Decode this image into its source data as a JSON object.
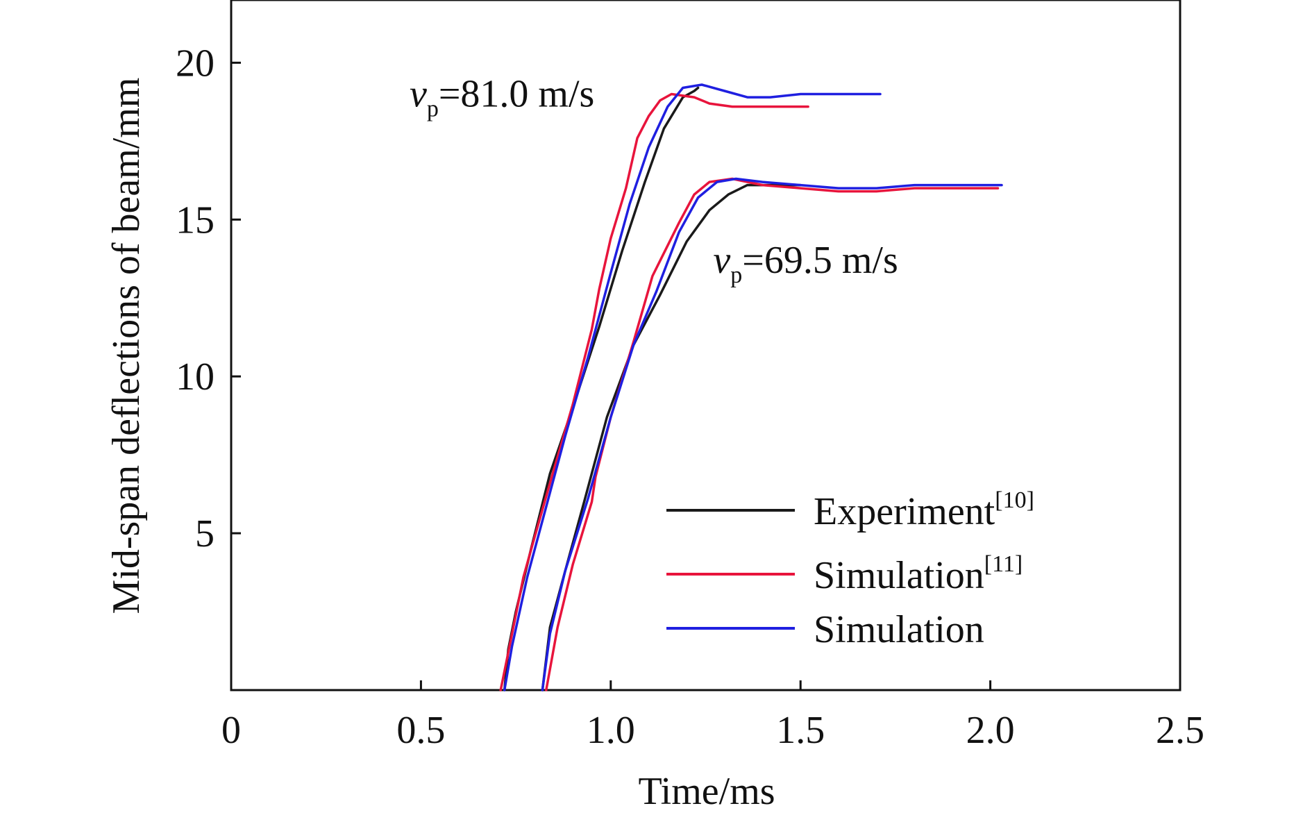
{
  "chart_data": {
    "type": "line",
    "xlabel": "Time/ms",
    "ylabel": "Mid-span deflections of beam/mm",
    "xlim": [
      0,
      2.5
    ],
    "ylim": [
      0,
      22
    ],
    "xticks": [
      {
        "value": 0,
        "label": "0"
      },
      {
        "value": 0.5,
        "label": "0.5"
      },
      {
        "value": 1.0,
        "label": "1.0"
      },
      {
        "value": 1.5,
        "label": "1.5"
      },
      {
        "value": 2.0,
        "label": "2.0"
      },
      {
        "value": 2.5,
        "label": "2.5"
      }
    ],
    "yticks": [
      {
        "value": 5,
        "label": "5"
      },
      {
        "value": 10,
        "label": "10"
      },
      {
        "value": 15,
        "label": "15"
      },
      {
        "value": 20,
        "label": "20"
      }
    ],
    "grid": false,
    "legend_position": "bottom-right",
    "legend": [
      {
        "name": "Experiment",
        "ref": "[10]",
        "color": "#1a1a1a"
      },
      {
        "name": "Simulation",
        "ref": "[11]",
        "color": "#e8143c"
      },
      {
        "name": "Simulation",
        "ref": "",
        "color": "#1f1fe0"
      }
    ],
    "annotations": [
      {
        "main": "v",
        "sub": "p",
        "rest": "=81.0 m/s",
        "x": 0.47,
        "y": 18.6
      },
      {
        "main": "v",
        "sub": "p",
        "rest": "=69.5 m/s",
        "x": 1.27,
        "y": 13.3
      }
    ],
    "groups": [
      {
        "velocity": "81.0 m/s",
        "series": [
          {
            "legend_index": 0,
            "color": "#1a1a1a",
            "points": [
              [
                0.72,
                0.0
              ],
              [
                0.73,
                1.3
              ],
              [
                0.75,
                2.5
              ],
              [
                0.79,
                4.5
              ],
              [
                0.84,
                6.9
              ],
              [
                0.9,
                9.0
              ],
              [
                0.97,
                11.6
              ],
              [
                1.03,
                14.0
              ],
              [
                1.09,
                16.2
              ],
              [
                1.14,
                17.9
              ],
              [
                1.19,
                18.9
              ],
              [
                1.22,
                19.1
              ],
              [
                1.23,
                19.2
              ]
            ]
          },
          {
            "legend_index": 1,
            "color": "#e8143c",
            "points": [
              [
                0.71,
                0.0
              ],
              [
                0.73,
                1.2
              ],
              [
                0.77,
                3.6
              ],
              [
                0.8,
                4.9
              ],
              [
                0.84,
                6.6
              ],
              [
                0.9,
                9.1
              ],
              [
                0.95,
                11.5
              ],
              [
                0.97,
                12.8
              ],
              [
                1.0,
                14.4
              ],
              [
                1.04,
                16.0
              ],
              [
                1.07,
                17.6
              ],
              [
                1.1,
                18.3
              ],
              [
                1.13,
                18.8
              ],
              [
                1.16,
                19.0
              ],
              [
                1.22,
                18.9
              ],
              [
                1.26,
                18.7
              ],
              [
                1.32,
                18.6
              ],
              [
                1.4,
                18.6
              ],
              [
                1.46,
                18.6
              ],
              [
                1.52,
                18.6
              ]
            ]
          },
          {
            "legend_index": 2,
            "color": "#1f1fe0",
            "points": [
              [
                0.72,
                0.0
              ],
              [
                0.74,
                1.4
              ],
              [
                0.78,
                3.6
              ],
              [
                0.82,
                5.4
              ],
              [
                0.88,
                8.1
              ],
              [
                0.94,
                10.6
              ],
              [
                1.0,
                13.3
              ],
              [
                1.05,
                15.5
              ],
              [
                1.1,
                17.3
              ],
              [
                1.15,
                18.6
              ],
              [
                1.19,
                19.2
              ],
              [
                1.24,
                19.3
              ],
              [
                1.3,
                19.1
              ],
              [
                1.36,
                18.9
              ],
              [
                1.42,
                18.9
              ],
              [
                1.5,
                19.0
              ],
              [
                1.6,
                19.0
              ],
              [
                1.71,
                19.0
              ]
            ]
          }
        ]
      },
      {
        "velocity": "69.5 m/s",
        "series": [
          {
            "legend_index": 0,
            "color": "#1a1a1a",
            "points": [
              [
                0.82,
                0.0
              ],
              [
                0.84,
                2.0
              ],
              [
                0.88,
                3.8
              ],
              [
                0.93,
                6.0
              ],
              [
                0.99,
                8.7
              ],
              [
                1.06,
                11.0
              ],
              [
                1.13,
                12.6
              ],
              [
                1.2,
                14.3
              ],
              [
                1.26,
                15.3
              ],
              [
                1.31,
                15.8
              ],
              [
                1.36,
                16.1
              ],
              [
                1.42,
                16.1
              ],
              [
                1.5,
                16.1
              ]
            ]
          },
          {
            "legend_index": 1,
            "color": "#e8143c",
            "points": [
              [
                0.83,
                0.0
              ],
              [
                0.86,
                2.0
              ],
              [
                0.9,
                4.0
              ],
              [
                0.95,
                6.0
              ],
              [
                0.96,
                6.8
              ],
              [
                1.0,
                8.7
              ],
              [
                1.06,
                11.1
              ],
              [
                1.11,
                13.2
              ],
              [
                1.18,
                14.9
              ],
              [
                1.22,
                15.8
              ],
              [
                1.26,
                16.2
              ],
              [
                1.32,
                16.3
              ],
              [
                1.4,
                16.1
              ],
              [
                1.5,
                16.0
              ],
              [
                1.6,
                15.9
              ],
              [
                1.7,
                15.9
              ],
              [
                1.8,
                16.0
              ],
              [
                1.9,
                16.0
              ],
              [
                2.02,
                16.0
              ]
            ]
          },
          {
            "legend_index": 2,
            "color": "#1f1fe0",
            "points": [
              [
                0.82,
                0.0
              ],
              [
                0.84,
                1.8
              ],
              [
                0.88,
                3.8
              ],
              [
                0.94,
                6.1
              ],
              [
                1.0,
                8.7
              ],
              [
                1.06,
                11.0
              ],
              [
                1.12,
                12.7
              ],
              [
                1.18,
                14.6
              ],
              [
                1.23,
                15.7
              ],
              [
                1.28,
                16.2
              ],
              [
                1.33,
                16.3
              ],
              [
                1.4,
                16.2
              ],
              [
                1.5,
                16.1
              ],
              [
                1.6,
                16.0
              ],
              [
                1.7,
                16.0
              ],
              [
                1.8,
                16.1
              ],
              [
                1.9,
                16.1
              ],
              [
                2.03,
                16.1
              ]
            ]
          }
        ]
      }
    ]
  }
}
